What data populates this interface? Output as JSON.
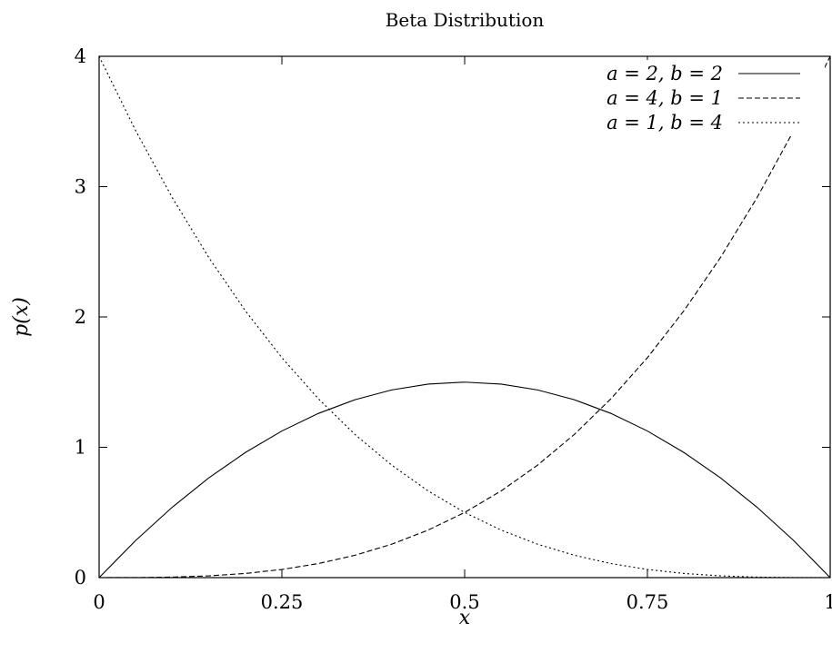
{
  "chart_data": {
    "type": "line",
    "title": "Beta Distribution",
    "xlabel": "x",
    "ylabel": "p(x)",
    "xlim": [
      0,
      1
    ],
    "ylim": [
      0,
      4
    ],
    "grid": false,
    "legend_position": "top-right",
    "x_ticks": [
      0,
      0.25,
      0.5,
      0.75,
      1
    ],
    "x_tick_labels": [
      "0",
      "0.25",
      "0.5",
      "0.75",
      "1"
    ],
    "y_ticks": [
      0,
      1,
      2,
      3,
      4
    ],
    "y_tick_labels": [
      "0",
      "1",
      "2",
      "3",
      "4"
    ],
    "x": [
      0,
      0.05,
      0.1,
      0.15,
      0.2,
      0.25,
      0.3,
      0.35,
      0.4,
      0.45,
      0.5,
      0.55,
      0.6,
      0.65,
      0.7,
      0.75,
      0.8,
      0.85,
      0.9,
      0.95,
      1
    ],
    "series": [
      {
        "name": "a = 2, b = 2",
        "line_style": "solid",
        "values": [
          0,
          0.285,
          0.54,
          0.765,
          0.96,
          1.125,
          1.26,
          1.365,
          1.44,
          1.485,
          1.5,
          1.485,
          1.44,
          1.365,
          1.26,
          1.125,
          0.96,
          0.765,
          0.54,
          0.285,
          0
        ]
      },
      {
        "name": "a = 4, b = 1",
        "line_style": "dashed",
        "values": [
          0,
          0.0005,
          0.004,
          0.0135,
          0.032,
          0.0625,
          0.108,
          0.1715,
          0.256,
          0.3645,
          0.5,
          0.6655,
          0.864,
          1.0985,
          1.372,
          1.6875,
          2.048,
          2.4565,
          2.916,
          3.4295,
          4
        ]
      },
      {
        "name": "a = 1, b = 4",
        "line_style": "dotted",
        "values": [
          4,
          3.4295,
          2.916,
          2.4565,
          2.048,
          1.6875,
          1.372,
          1.0985,
          0.864,
          0.6655,
          0.5,
          0.3645,
          0.256,
          0.1715,
          0.108,
          0.0625,
          0.032,
          0.0135,
          0.004,
          0.0005,
          0
        ]
      }
    ]
  }
}
